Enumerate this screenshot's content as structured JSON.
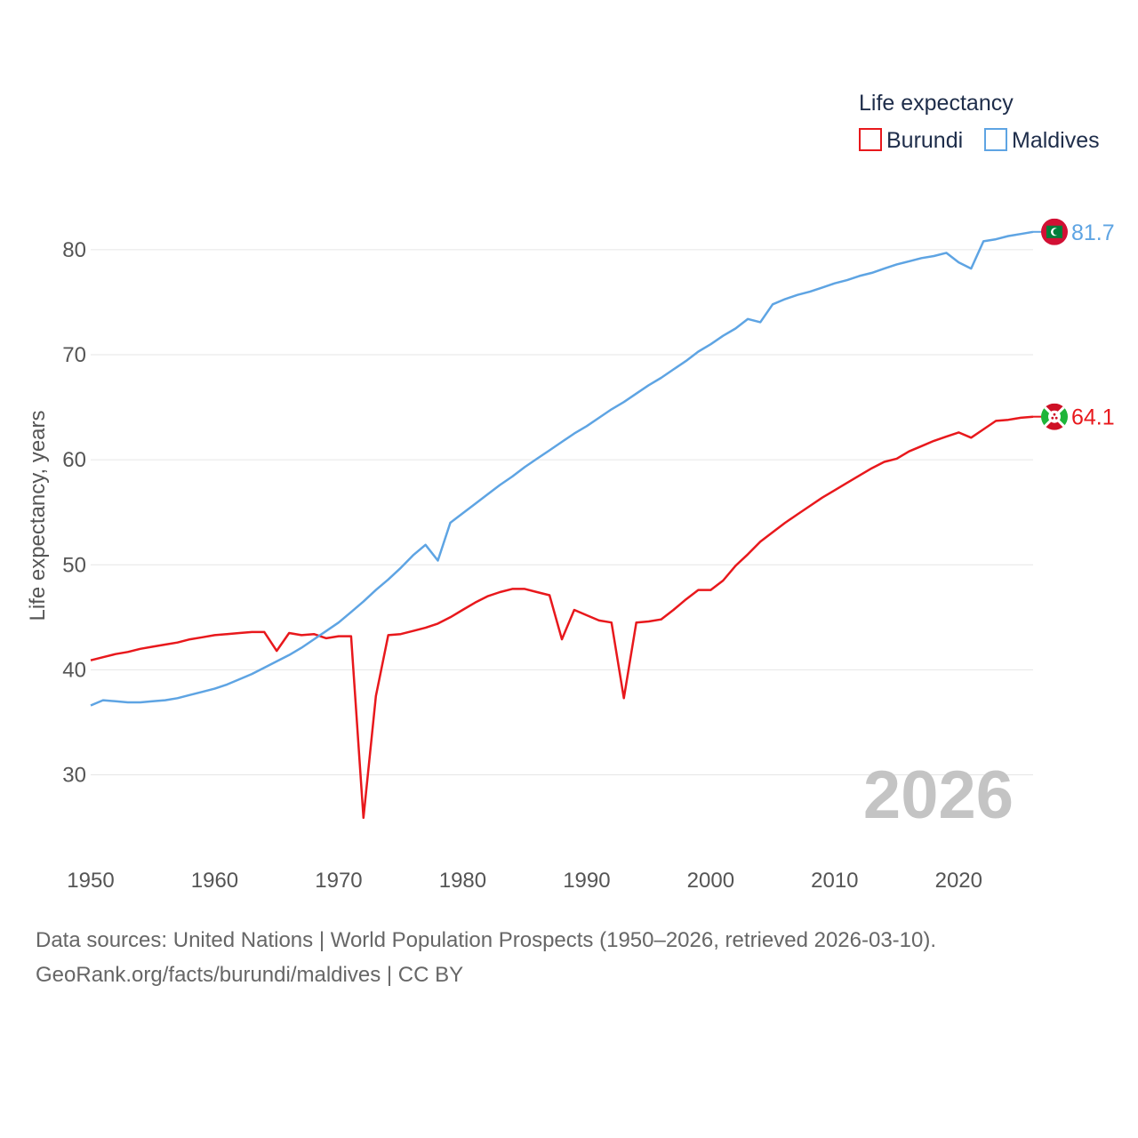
{
  "chart_data": {
    "type": "line",
    "legend_title": "Life expectancy",
    "ylabel": "Life expectancy, years",
    "xlabel": "",
    "xlim": [
      1950,
      2026
    ],
    "ylim": [
      22,
      86
    ],
    "x_ticks": [
      1950,
      1960,
      1970,
      1980,
      1990,
      2000,
      2010,
      2020
    ],
    "y_ticks": [
      30,
      40,
      50,
      60,
      70,
      80
    ],
    "current_year": "2026",
    "legend_position": "top-right",
    "x": [
      1950,
      1951,
      1952,
      1953,
      1954,
      1955,
      1956,
      1957,
      1958,
      1959,
      1960,
      1961,
      1962,
      1963,
      1964,
      1965,
      1966,
      1967,
      1968,
      1969,
      1970,
      1971,
      1972,
      1973,
      1974,
      1975,
      1976,
      1977,
      1978,
      1979,
      1980,
      1981,
      1982,
      1983,
      1984,
      1985,
      1986,
      1987,
      1988,
      1989,
      1990,
      1991,
      1992,
      1993,
      1994,
      1995,
      1996,
      1997,
      1998,
      1999,
      2000,
      2001,
      2002,
      2003,
      2004,
      2005,
      2006,
      2007,
      2008,
      2009,
      2010,
      2011,
      2012,
      2013,
      2014,
      2015,
      2016,
      2017,
      2018,
      2019,
      2020,
      2021,
      2022,
      2023,
      2024,
      2025,
      2026
    ],
    "series": [
      {
        "name": "Burundi",
        "color": "#e8181c",
        "end_label": "64.1",
        "flag_icon": "burundi-flag-icon",
        "values": [
          40.9,
          41.2,
          41.5,
          41.7,
          42.0,
          42.2,
          42.4,
          42.6,
          42.9,
          43.1,
          43.3,
          43.4,
          43.5,
          43.6,
          43.6,
          41.8,
          43.5,
          43.3,
          43.4,
          43.0,
          43.2,
          43.2,
          25.9,
          37.5,
          43.3,
          43.4,
          43.7,
          44.0,
          44.4,
          45.0,
          45.7,
          46.4,
          47.0,
          47.4,
          47.7,
          47.7,
          47.4,
          47.1,
          42.9,
          45.7,
          45.2,
          44.7,
          44.5,
          37.3,
          44.5,
          44.6,
          44.8,
          45.7,
          46.7,
          47.6,
          47.6,
          48.5,
          49.9,
          51.0,
          52.2,
          53.1,
          54.0,
          54.8,
          55.6,
          56.4,
          57.1,
          57.8,
          58.5,
          59.2,
          59.8,
          60.1,
          60.8,
          61.3,
          61.8,
          62.2,
          62.6,
          62.1,
          62.9,
          63.7,
          63.8,
          64.0,
          64.1
        ]
      },
      {
        "name": "Maldives",
        "color": "#5ea4e3",
        "end_label": "81.7",
        "flag_icon": "maldives-flag-icon",
        "values": [
          36.6,
          37.1,
          37.0,
          36.9,
          36.9,
          37.0,
          37.1,
          37.3,
          37.6,
          37.9,
          38.2,
          38.6,
          39.1,
          39.6,
          40.2,
          40.8,
          41.4,
          42.1,
          42.9,
          43.7,
          44.5,
          45.5,
          46.5,
          47.6,
          48.6,
          49.7,
          50.9,
          51.9,
          50.4,
          54.0,
          54.9,
          55.8,
          56.7,
          57.6,
          58.4,
          59.3,
          60.1,
          60.9,
          61.7,
          62.5,
          63.2,
          64.0,
          64.8,
          65.5,
          66.3,
          67.1,
          67.8,
          68.6,
          69.4,
          70.3,
          71.0,
          71.8,
          72.5,
          73.4,
          73.1,
          74.8,
          75.3,
          75.7,
          76.0,
          76.4,
          76.8,
          77.1,
          77.5,
          77.8,
          78.2,
          78.6,
          78.9,
          79.2,
          79.4,
          79.7,
          78.8,
          78.2,
          80.8,
          81.0,
          81.3,
          81.5,
          81.7
        ]
      }
    ]
  },
  "footer": {
    "source_line": "Data sources: United Nations | World Population Prospects (1950–2026, retrieved 2026-03-10).",
    "credit_line": "GeoRank.org/facts/burundi/maldives | CC BY"
  }
}
